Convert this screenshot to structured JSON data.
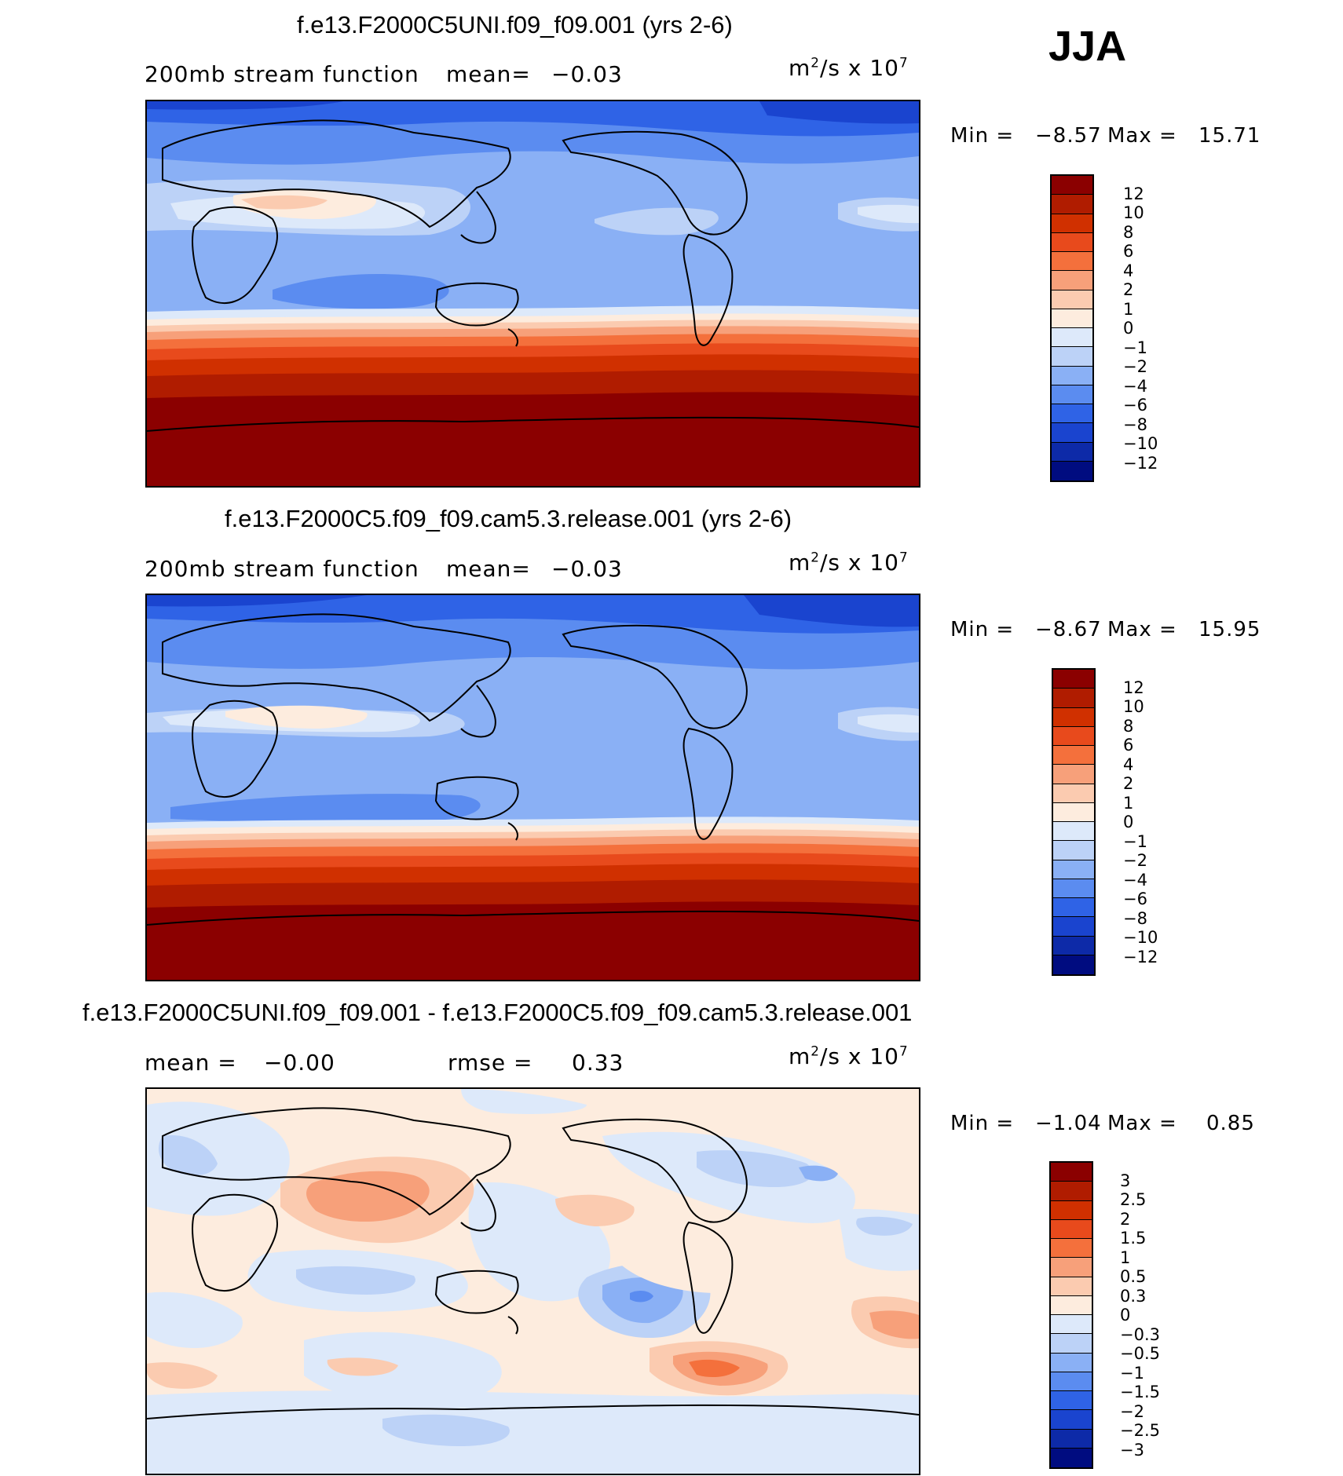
{
  "season": "JJA",
  "panels": [
    {
      "title": "f.e13.F2000C5UNI.f09_f09.001 (yrs 2-6)",
      "left_label": "200mb stream function",
      "mean_label": "mean=",
      "mean_value": "−0.03",
      "units_main": "m",
      "units_exp": "2",
      "units_rest": "/s x 10",
      "units_pow": "7",
      "min_label": "Min =",
      "min_value": "−8.57",
      "max_label": "Max =",
      "max_value": "15.71",
      "colorbar": {
        "labels": [
          "12",
          "10",
          "8",
          "6",
          "4",
          "2",
          "1",
          "0",
          "−1",
          "−2",
          "−4",
          "−6",
          "−8",
          "−10",
          "−12"
        ],
        "colors": [
          "#8b0000",
          "#b01c00",
          "#d03000",
          "#e84a1c",
          "#f4703c",
          "#f7a07a",
          "#fbcbb0",
          "#fdecde",
          "#dde9fa",
          "#bcd2f7",
          "#8ab0f5",
          "#5b8cf0",
          "#2f63e6",
          "#1a44cf",
          "#0d2aa8",
          "#000c80"
        ]
      }
    },
    {
      "title": "f.e13.F2000C5.f09_f09.cam5.3.release.001 (yrs 2-6)",
      "left_label": "200mb stream function",
      "mean_label": "mean=",
      "mean_value": "−0.03",
      "units_main": "m",
      "units_exp": "2",
      "units_rest": "/s x 10",
      "units_pow": "7",
      "min_label": "Min =",
      "min_value": "−8.67",
      "max_label": "Max =",
      "max_value": "15.95",
      "colorbar": {
        "labels": [
          "12",
          "10",
          "8",
          "6",
          "4",
          "2",
          "1",
          "0",
          "−1",
          "−2",
          "−4",
          "−6",
          "−8",
          "−10",
          "−12"
        ],
        "colors": [
          "#8b0000",
          "#b01c00",
          "#d03000",
          "#e84a1c",
          "#f4703c",
          "#f7a07a",
          "#fbcbb0",
          "#fdecde",
          "#dde9fa",
          "#bcd2f7",
          "#8ab0f5",
          "#5b8cf0",
          "#2f63e6",
          "#1a44cf",
          "#0d2aa8",
          "#000c80"
        ]
      }
    },
    {
      "title": "f.e13.F2000C5UNI.f09_f09.001 - f.e13.F2000C5.f09_f09.cam5.3.release.001",
      "left_label": "mean =",
      "left_value": "−0.00",
      "rmse_label": "rmse =",
      "rmse_value": "0.33",
      "units_main": "m",
      "units_exp": "2",
      "units_rest": "/s x 10",
      "units_pow": "7",
      "min_label": "Min =",
      "min_value": "−1.04",
      "max_label": "Max =",
      "max_value": "0.85",
      "colorbar": {
        "labels": [
          "3",
          "2.5",
          "2",
          "1.5",
          "1",
          "0.5",
          "0.3",
          "0",
          "−0.3",
          "−0.5",
          "−1",
          "−1.5",
          "−2",
          "−2.5",
          "−3"
        ],
        "colors": [
          "#8b0000",
          "#b01c00",
          "#d03000",
          "#e84a1c",
          "#f4703c",
          "#f7a07a",
          "#fbcbb0",
          "#fdecde",
          "#dde9fa",
          "#bcd2f7",
          "#8ab0f5",
          "#5b8cf0",
          "#2f63e6",
          "#1a44cf",
          "#0d2aa8",
          "#000c80"
        ]
      }
    }
  ]
}
